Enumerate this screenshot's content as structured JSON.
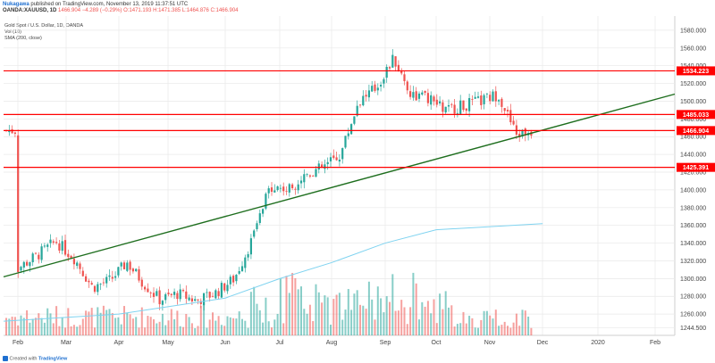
{
  "header": {
    "author": "Nukagawa",
    "published_text": "published on TradingView.com, November 13, 2019 11:37:51 UTC",
    "symbol": "OANDA:XAUUSD, 1D",
    "change": "1466.904 −4.289 (−0.29%)",
    "ohlc": "O:1471.193 H:1471.385 L:1464.876 C:1466.904"
  },
  "legend": {
    "title": "Gold Spot / U.S. Dollar, 1D, OANDA",
    "volume": "Vol (10)",
    "sma": "SMA (200, close)"
  },
  "footer": {
    "created_with": "Created with",
    "brand": "TradingView"
  },
  "colors": {
    "up": "#26a69a",
    "down": "#ef5350",
    "hline": "#ff0000",
    "trend": "#1e6e1e",
    "sma": "#7fd3f0",
    "grid": "#e8e8e8"
  },
  "chart_data": {
    "type": "candlestick",
    "title": "Gold Spot / U.S. Dollar, 1D, OANDA",
    "x_ticks": [
      "Feb",
      "Mar",
      "Apr",
      "May",
      "Jun",
      "Jul",
      "Aug",
      "Sep",
      "Oct",
      "Nov",
      "Dec",
      "2020",
      "Feb"
    ],
    "y_ticks": [
      1244.5,
      1260,
      1280,
      1300,
      1320,
      1340,
      1360,
      1380,
      1400,
      1420,
      1440,
      1460,
      1480,
      1500,
      1520,
      1540,
      1560,
      1580
    ],
    "ylim": [
      1236,
      1596
    ],
    "grid": true,
    "horizontal_levels": [
      {
        "value": 1534.223,
        "label": "1534.223"
      },
      {
        "value": 1485.033,
        "label": "1485.033"
      },
      {
        "value": 1466.904,
        "label": "1466.904"
      },
      {
        "value": 1425.391,
        "label": "1425.391"
      }
    ],
    "trendline": {
      "from": {
        "x": "Feb",
        "y": 1302
      },
      "to": {
        "x": "Feb 2020",
        "y": 1508
      }
    },
    "sma_200": [
      {
        "x": "Feb",
        "y": 1252
      },
      {
        "x": "Apr",
        "y": 1260
      },
      {
        "x": "Jun",
        "y": 1278
      },
      {
        "x": "Jul",
        "y": 1300
      },
      {
        "x": "Aug",
        "y": 1318
      },
      {
        "x": "Sep",
        "y": 1340
      },
      {
        "x": "Oct",
        "y": 1355
      },
      {
        "x": "Nov",
        "y": 1362
      }
    ],
    "price_path": [
      {
        "x": "Feb",
        "y": 1310
      },
      {
        "x": "Feb",
        "y": 1325
      },
      {
        "x": "Feb",
        "y": 1342
      },
      {
        "x": "Mar",
        "y": 1322
      },
      {
        "x": "Mar",
        "y": 1290
      },
      {
        "x": "Mar",
        "y": 1298
      },
      {
        "x": "Apr",
        "y": 1318
      },
      {
        "x": "Apr",
        "y": 1295
      },
      {
        "x": "Apr",
        "y": 1276
      },
      {
        "x": "May",
        "y": 1283
      },
      {
        "x": "May",
        "y": 1275
      },
      {
        "x": "May",
        "y": 1284
      },
      {
        "x": "Jun",
        "y": 1300
      },
      {
        "x": "Jun",
        "y": 1345
      },
      {
        "x": "Jun",
        "y": 1405
      },
      {
        "x": "Jul",
        "y": 1400
      },
      {
        "x": "Jul",
        "y": 1418
      },
      {
        "x": "Jul",
        "y": 1425
      },
      {
        "x": "Aug",
        "y": 1440
      },
      {
        "x": "Aug",
        "y": 1500
      },
      {
        "x": "Aug",
        "y": 1515
      },
      {
        "x": "Sep",
        "y": 1548
      },
      {
        "x": "Sep",
        "y": 1508
      },
      {
        "x": "Sep",
        "y": 1503
      },
      {
        "x": "Oct",
        "y": 1490
      },
      {
        "x": "Oct",
        "y": 1495
      },
      {
        "x": "Oct",
        "y": 1500
      },
      {
        "x": "Nov",
        "y": 1508
      },
      {
        "x": "Nov",
        "y": 1462
      },
      {
        "x": "Nov",
        "y": 1467
      }
    ]
  }
}
